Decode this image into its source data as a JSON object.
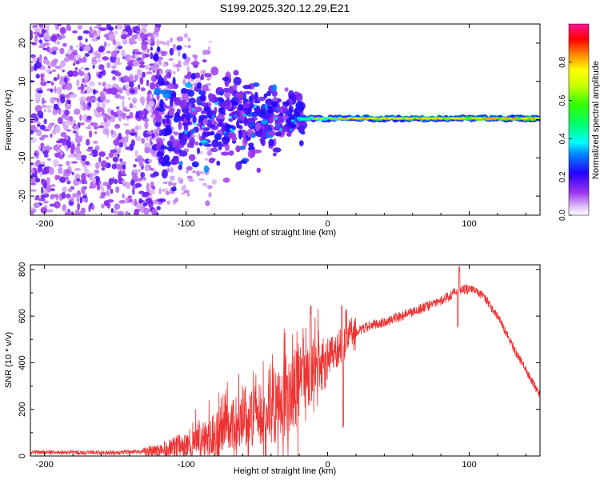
{
  "title": "S199.2025.320.12.29.E21",
  "chart_data": [
    {
      "type": "heatmap",
      "subtype": "spectrogram",
      "xlabel": "Height of straight line (km)",
      "ylabel": "Frequency (Hz)",
      "xlim": [
        -210,
        150
      ],
      "ylim": [
        -25,
        25
      ],
      "xticks": [
        -200,
        -100,
        0,
        100
      ],
      "yticks": [
        -20,
        -10,
        0,
        10,
        20
      ],
      "colorbar": {
        "label": "Normalized spectral amplitude",
        "range": [
          0.0,
          1.0
        ],
        "ticks": [
          0.0,
          0.2,
          0.4,
          0.6,
          0.8
        ],
        "tick_labels": [
          "0.0",
          "0.2",
          "0.4",
          "0.6",
          "0.8"
        ],
        "colormap": "rainbow (white-violet-blue-cyan-green-yellow-red-magenta)"
      },
      "features": {
        "noise_region": {
          "x_range": [
            -210,
            -120
          ],
          "freq_range": [
            -25,
            25
          ],
          "amplitude": "low (0.05-0.2), scattered"
        },
        "transition_region": {
          "x_range": [
            -120,
            -20
          ],
          "freq_range": [
            -15,
            12
          ],
          "amplitude": "0.1-0.35, clustered"
        },
        "carrier_line": {
          "x_range": [
            -20,
            150
          ],
          "frequency": 0.3,
          "amplitude": "0.5-0.9",
          "width_hz": 3
        }
      }
    },
    {
      "type": "line",
      "xlabel": "Height of straight line (km)",
      "ylabel": "SNR (10 * v/v)",
      "xlim": [
        -210,
        150
      ],
      "ylim": [
        0,
        820
      ],
      "xticks": [
        -200,
        -100,
        0,
        100
      ],
      "yticks": [
        0,
        200,
        400,
        600,
        800
      ],
      "series": [
        {
          "name": "SNR",
          "color": "#ee3333",
          "x": [
            -210,
            -180,
            -150,
            -130,
            -115,
            -100,
            -90,
            -80,
            -70,
            -60,
            -50,
            -40,
            -30,
            -25,
            -20,
            -15,
            -10,
            -5,
            0,
            5,
            10,
            15,
            20,
            30,
            40,
            50,
            60,
            70,
            80,
            90,
            95,
            100,
            105,
            110,
            120,
            130,
            140,
            150
          ],
          "values": [
            15,
            15,
            15,
            18,
            25,
            45,
            70,
            95,
            125,
            155,
            175,
            200,
            240,
            280,
            300,
            330,
            360,
            390,
            425,
            445,
            470,
            505,
            530,
            560,
            575,
            595,
            620,
            640,
            665,
            700,
            715,
            715,
            705,
            685,
            600,
            480,
            370,
            260
          ]
        }
      ],
      "annotations": {
        "spikes": [
          {
            "x": -12,
            "peak": 650
          },
          {
            "x": 10,
            "peak": 650
          },
          {
            "x": 13,
            "peak": 640
          },
          {
            "x": 93,
            "peak": 820
          }
        ],
        "dips": [
          {
            "x": 11,
            "trough": 110
          },
          {
            "x": 92,
            "trough": 540
          }
        ]
      }
    }
  ],
  "colors": {
    "line": "#ee3333",
    "axis": "#000000",
    "background": "#ffffff"
  }
}
